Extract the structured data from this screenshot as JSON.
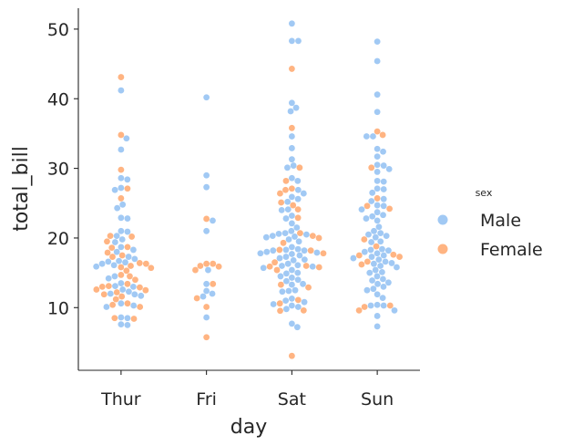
{
  "chart_data": {
    "type": "scatter",
    "subtype": "swarm",
    "xlabel": "day",
    "ylabel": "total_bill",
    "categories": [
      "Thur",
      "Fri",
      "Sat",
      "Sun"
    ],
    "yticks": [
      10,
      20,
      30,
      40,
      50
    ],
    "ylim": [
      1,
      53
    ],
    "grid": false,
    "legend": {
      "title": "sex",
      "placement": "right"
    },
    "series": [
      {
        "name": "Male",
        "color": "#a1c9f4",
        "values": {
          "Thur": [
            7.5,
            7.6,
            8.5,
            8.6,
            10.1,
            10.3,
            10.6,
            11.7,
            11.9,
            12.0,
            12.3,
            12.6,
            13.0,
            13.1,
            13.5,
            14.2,
            14.5,
            15.9,
            16.1,
            16.3,
            16.5,
            16.6,
            16.7,
            17.0,
            17.3,
            18.0,
            18.3,
            18.7,
            19.4,
            19.8,
            20.3,
            20.9,
            21.0,
            22.8,
            22.9,
            24.3,
            24.8,
            26.9,
            27.2,
            28.4,
            28.6,
            32.7,
            34.3,
            41.2
          ],
          "Fri": [
            8.6,
            11.6,
            12.0,
            12.4,
            13.4,
            15.4,
            21.0,
            22.5,
            27.3,
            29.0,
            40.2
          ],
          "Sat": [
            7.2,
            7.7,
            9.8,
            10.1,
            10.3,
            10.5,
            10.8,
            11.0,
            11.3,
            12.3,
            12.4,
            12.5,
            13.3,
            13.4,
            13.8,
            14.0,
            14.3,
            14.5,
            14.9,
            15.0,
            15.4,
            15.7,
            15.9,
            16.0,
            16.1,
            16.3,
            16.8,
            16.9,
            17.1,
            17.3,
            17.5,
            17.7,
            17.8,
            17.9,
            18.0,
            18.2,
            18.2,
            18.3,
            18.4,
            18.7,
            19.5,
            19.8,
            20.1,
            20.2,
            20.3,
            20.5,
            20.6,
            20.7,
            21.0,
            21.5,
            22.1,
            22.8,
            23.2,
            24.0,
            24.1,
            25.2,
            25.6,
            25.9,
            26.4,
            26.9,
            28.2,
            28.6,
            30.1,
            30.4,
            31.3,
            32.9,
            34.6,
            38.2,
            38.7,
            39.4,
            48.3,
            48.3,
            50.8
          ],
          "Sun": [
            7.3,
            8.8,
            9.6,
            10.3,
            10.3,
            10.4,
            11.4,
            11.9,
            12.5,
            12.7,
            13.0,
            13.4,
            13.6,
            13.9,
            14.1,
            14.5,
            15.0,
            15.1,
            15.4,
            15.8,
            16.0,
            16.3,
            16.4,
            16.6,
            16.9,
            17.1,
            17.3,
            17.5,
            17.8,
            18.0,
            18.2,
            18.3,
            18.4,
            19.4,
            19.5,
            20.1,
            20.3,
            20.5,
            20.7,
            21.0,
            21.6,
            22.5,
            22.8,
            23.1,
            23.3,
            23.7,
            24.1,
            24.6,
            24.7,
            25.3,
            25.6,
            26.5,
            27.0,
            27.1,
            28.1,
            28.2,
            29.5,
            29.9,
            30.4,
            30.5,
            31.7,
            32.4,
            32.8,
            34.6,
            34.6,
            38.1,
            40.6,
            45.4,
            48.2
          ]
        }
      },
      {
        "name": "Female",
        "color": "#ffb482",
        "values": {
          "Thur": [
            8.4,
            8.5,
            10.1,
            10.4,
            10.6,
            11.2,
            11.6,
            11.9,
            12.2,
            12.5,
            12.6,
            12.9,
            13.0,
            13.1,
            13.4,
            14.0,
            14.5,
            14.7,
            15.3,
            15.7,
            15.8,
            16.0,
            16.3,
            16.4,
            17.3,
            17.5,
            17.9,
            18.6,
            18.7,
            19.5,
            20.2,
            20.3,
            25.7,
            27.1,
            29.8,
            34.8,
            43.1
          ],
          "Fri": [
            5.75,
            10.1,
            11.35,
            13.4,
            15.4,
            15.9,
            16.0,
            16.3,
            16.3,
            22.75
          ],
          "Sat": [
            3.07,
            9.55,
            9.6,
            10.6,
            11.1,
            12.9,
            13.3,
            15.4,
            15.8,
            15.9,
            16.0,
            16.5,
            17.8,
            18.2,
            18.3,
            19.3,
            20.0,
            20.3,
            20.7,
            22.9,
            24.1,
            24.7,
            25.1,
            26.4,
            26.9,
            27.1,
            28.2,
            30.1,
            35.8,
            44.3
          ],
          "Sun": [
            9.6,
            10.1,
            10.3,
            16.2,
            16.6,
            17.3,
            17.5,
            17.6,
            18.8,
            19.8,
            24.2,
            24.6,
            25.7,
            30.1,
            34.8,
            35.3
          ]
        }
      }
    ]
  }
}
